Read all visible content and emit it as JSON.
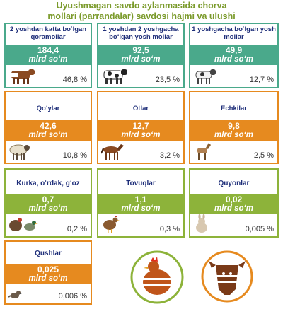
{
  "title": {
    "line1": "Uyushmagan savdo aylanmasida chorva",
    "line2": "mollari (parrandalar) savdosi hajmi va ulushi"
  },
  "colors": {
    "title": "#7a9a2a",
    "teal": "#4aa98b",
    "orange": "#e68a1f",
    "green": "#8db33a",
    "name_text": "#1f2f7a"
  },
  "row1": [
    {
      "name": "2 yoshdan katta boʻlgan qoramollar",
      "value": "184,4",
      "unit": "mlrd soʻm",
      "share": "46,8 %",
      "icon": "cow-icon"
    },
    {
      "name": "1 yoshdan 2 yoshgacha boʻlgan yosh mollar",
      "value": "92,5",
      "unit": "mlrd soʻm",
      "share": "23,5 %",
      "icon": "calf-icon"
    },
    {
      "name": "1 yoshgacha boʻlgan yosh mollar",
      "value": "49,9",
      "unit": "mlrd soʻm",
      "share": "12,7 %",
      "icon": "young-calf-icon"
    }
  ],
  "row2": [
    {
      "name": "Qoʻylar",
      "value": "42,6",
      "unit": "mlrd soʻm",
      "share": "10,8 %",
      "icon": "sheep-icon"
    },
    {
      "name": "Otlar",
      "value": "12,7",
      "unit": "mlrd soʻm",
      "share": "3,2 %",
      "icon": "horse-icon"
    },
    {
      "name": "Echkilar",
      "value": "9,8",
      "unit": "mlrd soʻm",
      "share": "2,5 %",
      "icon": "goat-icon"
    }
  ],
  "row3": [
    {
      "name": "Kurka, oʻrdak, gʻoz",
      "value": "0,7",
      "unit": "mlrd soʻm",
      "share": "0,2 %",
      "icon": "turkey-duck-icon"
    },
    {
      "name": "Tovuqlar",
      "value": "1,1",
      "unit": "mlrd soʻm",
      "share": "0,3 %",
      "icon": "chicken-icon"
    },
    {
      "name": "Quyonlar",
      "value": "0,02",
      "unit": "mlrd soʻm",
      "share": "0,005 %",
      "icon": "rabbit-icon"
    }
  ],
  "row4": [
    {
      "name": "Qushlar",
      "value": "0,025",
      "unit": "mlrd soʻm",
      "share": "0,006 %",
      "icon": "bird-icon"
    }
  ]
}
